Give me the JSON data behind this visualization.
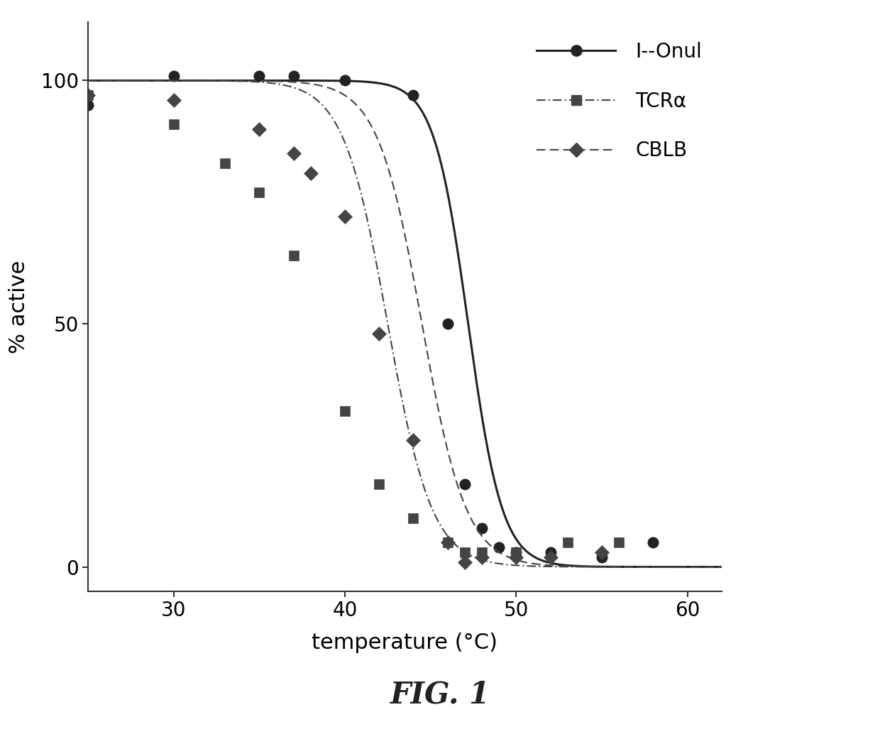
{
  "title": "FIG. 1",
  "xlabel": "temperature (°C)",
  "ylabel": "% active",
  "xlim": [
    25,
    62
  ],
  "ylim": [
    -5,
    112
  ],
  "xticks": [
    30,
    40,
    50,
    60
  ],
  "yticks": [
    0,
    50,
    100
  ],
  "series": [
    {
      "name": "I--Onul",
      "color": "#222222",
      "linestyle": "solid",
      "linewidth": 2.2,
      "marker": "o",
      "markersize": 11,
      "midpoint": 47.2,
      "slope": 1.0,
      "data_x": [
        25,
        30,
        35,
        37,
        40,
        44,
        46,
        47,
        48,
        49,
        50,
        52,
        55,
        58
      ],
      "data_y": [
        95,
        101,
        101,
        101,
        100,
        97,
        50,
        17,
        8,
        4,
        3,
        3,
        2,
        5
      ]
    },
    {
      "name": "TCRα",
      "color": "#444444",
      "linestyle": "dashdot",
      "linewidth": 1.5,
      "marker": "s",
      "markersize": 10,
      "midpoint": 42.5,
      "slope": 1.3,
      "data_x": [
        25,
        30,
        33,
        35,
        37,
        40,
        42,
        44,
        46,
        47,
        48,
        50,
        53,
        56
      ],
      "data_y": [
        97,
        91,
        83,
        77,
        64,
        32,
        17,
        10,
        5,
        3,
        3,
        3,
        5,
        5
      ]
    },
    {
      "name": "CBLB",
      "color": "#444444",
      "linestyle": "dashed",
      "linewidth": 1.5,
      "marker": "D",
      "markersize": 10,
      "midpoint": 44.5,
      "slope": 1.3,
      "data_x": [
        25,
        30,
        35,
        37,
        38,
        40,
        42,
        44,
        46,
        47,
        48,
        50,
        52,
        55
      ],
      "data_y": [
        97,
        96,
        90,
        85,
        81,
        72,
        48,
        26,
        5,
        1,
        2,
        2,
        2,
        3
      ]
    }
  ],
  "background_color": "#ffffff",
  "axis_color": "#333333",
  "tick_color": "#333333",
  "label_fontsize": 22,
  "tick_fontsize": 20,
  "legend_fontsize": 20,
  "title_fontsize": 30
}
